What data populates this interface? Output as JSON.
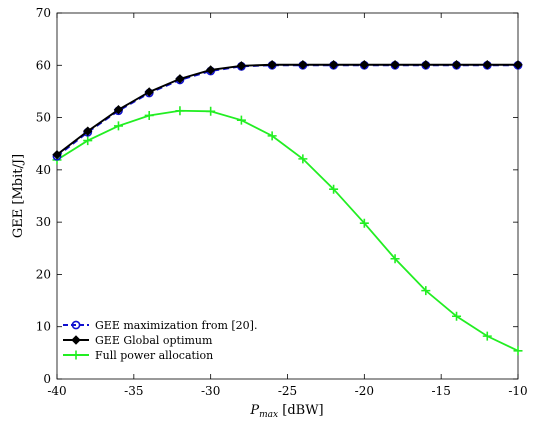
{
  "chart_data": {
    "type": "line",
    "title": "",
    "xlabel": {
      "main": "P",
      "sub": "max",
      "unit": " [dBW]"
    },
    "ylabel": "GEE [Mbit/J]",
    "xlim": [
      -40,
      -10
    ],
    "ylim": [
      0,
      70
    ],
    "xticks": [
      -40,
      -35,
      -30,
      -25,
      -20,
      -15,
      -10
    ],
    "yticks": [
      0,
      10,
      20,
      30,
      40,
      50,
      60,
      70
    ],
    "grid": false,
    "legend_position": "bottom-left",
    "x": [
      -40,
      -38,
      -36,
      -34,
      -32,
      -30,
      -28,
      -26,
      -24,
      -22,
      -20,
      -18,
      -16,
      -14,
      -12,
      -10
    ],
    "series": [
      {
        "name": "GEE maximization from [20].",
        "color": "#1010d0",
        "style": "dashed",
        "marker": "circle",
        "values": [
          42.6,
          47.2,
          51.3,
          54.7,
          57.2,
          58.9,
          59.8,
          60.0,
          60.0,
          60.0,
          60.0,
          60.0,
          60.0,
          60.0,
          60.0,
          60.0
        ]
      },
      {
        "name": "GEE Global optimum",
        "color": "#000000",
        "style": "solid",
        "marker": "diamond",
        "values": [
          42.9,
          47.4,
          51.5,
          54.9,
          57.4,
          59.1,
          59.9,
          60.1,
          60.1,
          60.1,
          60.1,
          60.1,
          60.1,
          60.1,
          60.1,
          60.1
        ]
      },
      {
        "name": "Full power allocation",
        "color": "#22ee22",
        "style": "solid",
        "marker": "plus",
        "values": [
          41.9,
          45.6,
          48.4,
          50.4,
          51.3,
          51.2,
          49.5,
          46.5,
          42.1,
          36.3,
          29.8,
          23.0,
          16.9,
          12.0,
          8.2,
          5.4
        ]
      }
    ]
  }
}
